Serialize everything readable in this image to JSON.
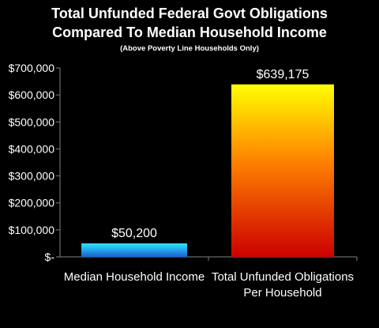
{
  "chart_data": {
    "type": "bar",
    "title_lines": [
      "Total Unfunded Federal Govt Obligations",
      "Compared To Median Household Income"
    ],
    "subtitle": "(Above Poverty Line Households Only)",
    "categories": [
      [
        "Median Household Income"
      ],
      [
        "Total Unfunded Obligations",
        "Per Household"
      ]
    ],
    "values": [
      50200,
      639175
    ],
    "data_labels": [
      "$50,200",
      "$639,175"
    ],
    "ylim": [
      0,
      700000
    ],
    "y_ticks": [
      0,
      100000,
      200000,
      300000,
      400000,
      500000,
      600000,
      700000
    ],
    "y_tick_labels": [
      "$-",
      "$100,000",
      "$200,000",
      "$300,000",
      "$400,000",
      "$500,000",
      "$600,000",
      "$700,000"
    ],
    "xlabel": "",
    "ylabel": "",
    "grid": false,
    "legend": "none",
    "colors": {
      "background": "#000000",
      "text": "#ffffff",
      "axis": "#808080",
      "bar1_top": "#2ee6ff",
      "bar1_bottom": "#1a5fd1",
      "bar2_top": "#ffff00",
      "bar2_mid": "#ff8000",
      "bar2_bottom": "#cc0000"
    }
  }
}
